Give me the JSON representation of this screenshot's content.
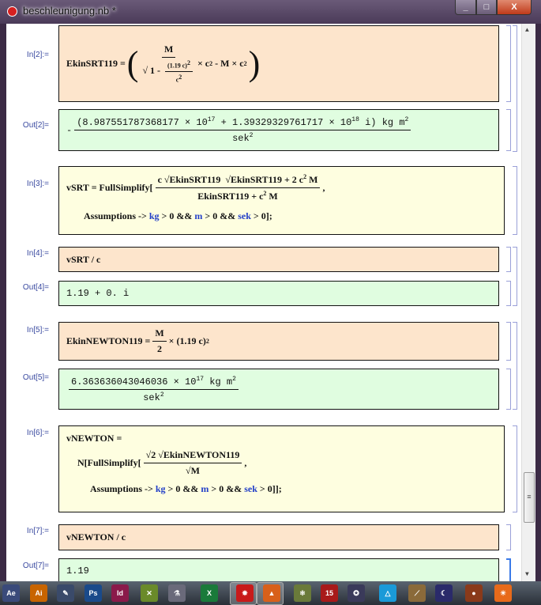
{
  "window": {
    "title": "beschleunigung.nb *",
    "minimize": "_",
    "maximize": "□",
    "close": "X"
  },
  "cells": {
    "in2": {
      "label": "In[2]:=",
      "lhs": "EkinSRT119 =",
      "num": "M",
      "one": "1 -",
      "inner_num": "(1.19 c)",
      "inner_exp": "2",
      "inner_den": "c",
      "inner_den_exp": "2",
      "t1": "× c",
      "e1": "2",
      "t2": "- M × c",
      "e2": "2"
    },
    "out2": {
      "label": "Out[2]=",
      "sign": "-",
      "num": "(8.987551787368177 × 10",
      "exp1": "17",
      "num2": "+ 1.39329329761717 × 10",
      "exp2": "18",
      "num3": "i) kg m",
      "exp3": "2",
      "den": "sek",
      "den_exp": "2"
    },
    "in3": {
      "label": "In[3]:=",
      "lhs": "vSRT = FullSimplify[",
      "num_a": "c √EkinSRT119",
      "num_b": "√EkinSRT119 + 2 c",
      "num_b_exp": "2",
      "num_b2": "M",
      "den": "EkinSRT119 + c",
      "den_exp": "2",
      "den2": "M",
      "comma": ",",
      "assume": "Assumptions ->",
      "kg": "kg",
      "c1": "> 0 &&",
      "m": "m",
      "c2": "> 0 &&",
      "sek": "sek",
      "c3": "> 0];"
    },
    "in4": {
      "label": "In[4]:=",
      "text": "vSRT / c"
    },
    "out4": {
      "label": "Out[4]=",
      "text": "1.19 + 0. i"
    },
    "in5": {
      "label": "In[5]:=",
      "lhs": "EkinNEWTON119 =",
      "num": "M",
      "den": "2",
      "rest": "× (1.19 c)",
      "exp": "2"
    },
    "out5": {
      "label": "Out[5]=",
      "num": "6.363636043046036 × 10",
      "exp1": "17",
      "num2": "kg m",
      "exp2": "2",
      "den": "sek",
      "den_exp": "2"
    },
    "in6": {
      "label": "In[6]:=",
      "line1": "vNEWTON =",
      "n": "N[FullSimplify[",
      "num": "√2 √EkinNEWTON119",
      "den": "√M",
      "comma": ",",
      "assume": "Assumptions ->",
      "kg": "kg",
      "c1": "> 0 &&",
      "m": "m",
      "c2": "> 0 &&",
      "sek": "sek",
      "c3": "> 0]];"
    },
    "in7": {
      "label": "In[7]:=",
      "text": "vNEWTON / c"
    },
    "out7": {
      "label": "Out[7]=",
      "text": "1.19"
    }
  },
  "taskbar": [
    {
      "name": "after-effects",
      "abbr": "Ae",
      "color": "#3a4a7a"
    },
    {
      "name": "illustrator",
      "abbr": "Ai",
      "color": "#c86400"
    },
    {
      "name": "pen-tool",
      "abbr": "✎",
      "color": "#3a4a6a"
    },
    {
      "name": "photoshop",
      "abbr": "Ps",
      "color": "#1a4a8a"
    },
    {
      "name": "indesign",
      "abbr": "Id",
      "color": "#8a1a4a"
    },
    {
      "name": "app-green",
      "abbr": "✕",
      "color": "#6a8a2a"
    },
    {
      "name": "lab-flask",
      "abbr": "⚗",
      "color": "#6a6a7a"
    },
    {
      "name": "excel",
      "abbr": "X",
      "color": "#1a7a3a"
    },
    {
      "name": "mathematica",
      "abbr": "✸",
      "color": "#c81a1a"
    },
    {
      "name": "matlab",
      "abbr": "▲",
      "color": "#d8601a"
    },
    {
      "name": "molecule",
      "abbr": "⚛",
      "color": "#6a7a3a"
    },
    {
      "name": "calendar",
      "abbr": "15",
      "color": "#a81a1a"
    },
    {
      "name": "network",
      "abbr": "✪",
      "color": "#3a3a5a"
    },
    {
      "name": "geometry",
      "abbr": "△",
      "color": "#1a9ad8"
    },
    {
      "name": "telescope",
      "abbr": "⟋",
      "color": "#8a6a3a"
    },
    {
      "name": "night-sky",
      "abbr": "☾",
      "color": "#2a2a6a"
    },
    {
      "name": "planet",
      "abbr": "●",
      "color": "#8a3a1a"
    },
    {
      "name": "sun",
      "abbr": "☀",
      "color": "#e86a1a"
    }
  ]
}
